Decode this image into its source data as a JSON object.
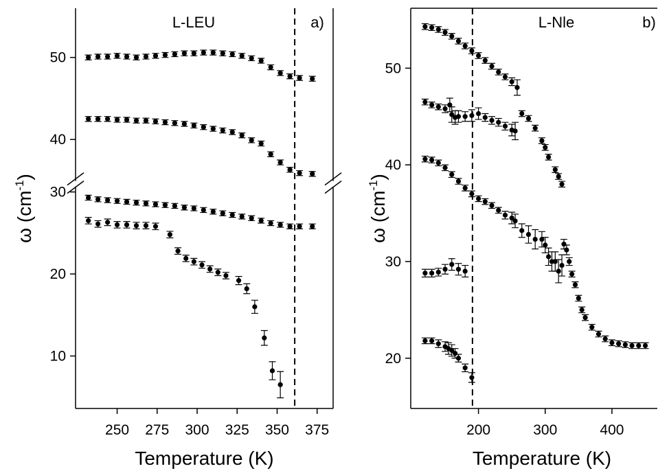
{
  "chart_data": [
    {
      "type": "scatter",
      "annotation": "L-LEU",
      "panel_label": "a)",
      "xlabel": "Temperature (K)",
      "ylabel": [
        "ω (cm",
        "-1",
        ")"
      ],
      "xlim": [
        224,
        385
      ],
      "ylim": [
        3.6,
        56
      ],
      "y_break": [
        31,
        34.6
      ],
      "vline": 361,
      "xticks": [
        250,
        275,
        300,
        325,
        350,
        375
      ],
      "yticks": [
        10,
        20,
        30,
        40,
        50
      ],
      "series": [
        {
          "color": "#000000",
          "x": [
            232,
            238,
            244,
            250,
            256,
            262,
            268,
            274,
            280,
            286,
            292,
            298,
            304,
            310,
            316,
            322,
            328,
            334,
            340,
            346,
            352,
            358,
            364,
            372
          ],
          "values": [
            50.0,
            50.1,
            50.1,
            50.2,
            50.1,
            50.0,
            50.1,
            50.2,
            50.3,
            50.4,
            50.5,
            50.5,
            50.6,
            50.6,
            50.5,
            50.4,
            50.2,
            49.9,
            49.6,
            48.8,
            48.1,
            47.7,
            47.5,
            47.4
          ],
          "errors": [
            0.3,
            0.3,
            0.3,
            0.3,
            0.3,
            0.3,
            0.3,
            0.3,
            0.3,
            0.3,
            0.3,
            0.3,
            0.3,
            0.3,
            0.3,
            0.3,
            0.3,
            0.3,
            0.3,
            0.3,
            0.3,
            0.3,
            0.3,
            0.3
          ]
        },
        {
          "color": "#000000",
          "x": [
            232,
            238,
            244,
            250,
            256,
            262,
            268,
            274,
            280,
            286,
            292,
            298,
            304,
            310,
            316,
            322,
            328,
            334,
            340,
            346,
            352,
            358,
            364,
            372
          ],
          "values": [
            42.5,
            42.5,
            42.5,
            42.4,
            42.4,
            42.3,
            42.3,
            42.2,
            42.1,
            42.0,
            41.9,
            41.7,
            41.5,
            41.3,
            41.1,
            40.9,
            40.5,
            39.9,
            39.5,
            38.2,
            37.2,
            36.3,
            35.9,
            35.8
          ],
          "errors": [
            0.3,
            0.3,
            0.3,
            0.3,
            0.3,
            0.3,
            0.3,
            0.3,
            0.3,
            0.3,
            0.3,
            0.3,
            0.3,
            0.3,
            0.3,
            0.3,
            0.3,
            0.3,
            0.3,
            0.3,
            0.3,
            0.3,
            0.3,
            0.3
          ]
        },
        {
          "color": "#000000",
          "x": [
            232,
            238,
            244,
            250,
            256,
            262,
            268,
            274,
            280,
            286,
            292,
            298,
            304,
            310,
            316,
            322,
            328,
            334,
            340,
            346,
            352,
            358,
            364,
            372
          ],
          "values": [
            29.3,
            29.1,
            29.0,
            28.9,
            28.8,
            28.7,
            28.6,
            28.5,
            28.4,
            28.3,
            28.1,
            28.0,
            27.8,
            27.6,
            27.4,
            27.2,
            27.0,
            26.8,
            26.5,
            26.2,
            26.0,
            25.8,
            25.8,
            25.8
          ],
          "errors": [
            0.3,
            0.3,
            0.3,
            0.3,
            0.3,
            0.3,
            0.3,
            0.3,
            0.3,
            0.3,
            0.3,
            0.3,
            0.3,
            0.3,
            0.3,
            0.3,
            0.3,
            0.3,
            0.3,
            0.3,
            0.3,
            0.3,
            0.3,
            0.3
          ]
        },
        {
          "color": "#000000",
          "x": [
            232,
            238,
            244,
            250,
            256,
            262,
            268,
            274,
            283,
            288,
            293,
            298,
            303,
            308,
            313,
            318,
            326,
            331,
            336,
            342,
            347,
            352
          ],
          "values": [
            26.5,
            26.1,
            26.3,
            26.0,
            26.0,
            25.9,
            25.9,
            25.8,
            24.8,
            22.8,
            21.9,
            21.5,
            21.1,
            20.6,
            20.2,
            19.8,
            19.2,
            18.2,
            16.0,
            12.2,
            8.2,
            6.5
          ],
          "errors": [
            0.4,
            0.4,
            0.4,
            0.4,
            0.4,
            0.4,
            0.4,
            0.4,
            0.4,
            0.4,
            0.4,
            0.4,
            0.4,
            0.4,
            0.4,
            0.4,
            0.5,
            0.6,
            0.8,
            0.9,
            1.1,
            1.6
          ]
        }
      ]
    },
    {
      "type": "scatter",
      "annotation": "L-Nle",
      "panel_label": "b)",
      "xlabel": "Temperature (K)",
      "ylabel": [
        "ω (cm",
        "-1",
        ")"
      ],
      "xlim": [
        98.5,
        468
      ],
      "ylim": [
        14.8,
        56.2
      ],
      "vline": 191,
      "xticks": [
        200,
        300,
        400
      ],
      "yticks": [
        20,
        30,
        40,
        50
      ],
      "series": [
        {
          "color": "#000000",
          "x": [
            120,
            130,
            140,
            150,
            160,
            170,
            180,
            190,
            200,
            210,
            220,
            230,
            240,
            250,
            258
          ],
          "values": [
            54.3,
            54.2,
            54.0,
            53.7,
            53.3,
            52.8,
            52.3,
            51.8,
            51.3,
            50.8,
            50.2,
            49.6,
            49.1,
            48.6,
            48.0
          ],
          "errors": [
            0.3,
            0.3,
            0.3,
            0.3,
            0.3,
            0.3,
            0.3,
            0.3,
            0.3,
            0.3,
            0.3,
            0.3,
            0.3,
            0.4,
            0.8
          ]
        },
        {
          "color": "#000000",
          "x": [
            120,
            130,
            140,
            150,
            157,
            160,
            165,
            170,
            180,
            190,
            200,
            210,
            220,
            230,
            240,
            250,
            255
          ],
          "values": [
            46.5,
            46.2,
            46.0,
            45.8,
            46.2,
            45.2,
            44.9,
            45.0,
            45.0,
            45.1,
            45.3,
            44.9,
            44.6,
            44.4,
            44.0,
            43.6,
            43.5
          ],
          "errors": [
            0.3,
            0.3,
            0.3,
            0.4,
            0.7,
            0.8,
            0.7,
            0.6,
            0.5,
            0.6,
            0.6,
            0.4,
            0.4,
            0.4,
            0.4,
            0.6,
            0.9
          ]
        },
        {
          "color": "#000000",
          "x": [
            265,
            275,
            285,
            295,
            300,
            305,
            315,
            320,
            325
          ],
          "values": [
            45.3,
            44.8,
            43.8,
            42.5,
            41.8,
            40.8,
            39.5,
            38.8,
            38.0
          ],
          "errors": [
            0.3,
            0.3,
            0.3,
            0.3,
            0.3,
            0.3,
            0.3,
            0.3,
            0.3
          ]
        },
        {
          "color": "#000000",
          "x": [
            120,
            130,
            140,
            150,
            160,
            170,
            180,
            190,
            200,
            210,
            220,
            230,
            240,
            250,
            255,
            265,
            275,
            285,
            295,
            300,
            305,
            310,
            315,
            320,
            325,
            328,
            332,
            336,
            340,
            345,
            350,
            355,
            360,
            370,
            380,
            390,
            400,
            410,
            420,
            430,
            440,
            450
          ],
          "values": [
            40.6,
            40.5,
            40.2,
            39.7,
            39.0,
            38.3,
            37.6,
            37.0,
            36.5,
            36.2,
            35.8,
            35.3,
            34.8,
            34.5,
            34.2,
            33.2,
            32.8,
            32.3,
            32.3,
            31.7,
            30.5,
            30.0,
            30.0,
            29.0,
            29.6,
            31.8,
            31.2,
            30.0,
            28.7,
            27.6,
            26.2,
            25.0,
            24.2,
            23.2,
            22.5,
            22.0,
            21.6,
            21.5,
            21.4,
            21.3,
            21.3,
            21.3
          ],
          "errors": [
            0.3,
            0.3,
            0.3,
            0.3,
            0.3,
            0.3,
            0.3,
            0.3,
            0.3,
            0.3,
            0.3,
            0.3,
            0.4,
            0.6,
            0.7,
            0.7,
            0.9,
            1.0,
            0.8,
            0.8,
            0.9,
            1.0,
            1.0,
            1.2,
            1.1,
            0.5,
            0.5,
            0.4,
            0.3,
            0.3,
            0.3,
            0.3,
            0.3,
            0.3,
            0.3,
            0.3,
            0.3,
            0.3,
            0.3,
            0.3,
            0.3,
            0.3
          ]
        },
        {
          "color": "#000000",
          "x": [
            120,
            130,
            140,
            150,
            160,
            170,
            180
          ],
          "values": [
            28.8,
            28.8,
            28.9,
            29.2,
            29.7,
            29.2,
            29.0
          ],
          "errors": [
            0.4,
            0.4,
            0.4,
            0.5,
            0.6,
            0.6,
            0.6
          ]
        },
        {
          "color": "#000000",
          "x": [
            120,
            130,
            140,
            150,
            155,
            160,
            165,
            170,
            180,
            190
          ],
          "values": [
            21.8,
            21.8,
            21.5,
            21.2,
            21.0,
            20.8,
            20.5,
            20.0,
            19.0,
            18.0
          ],
          "errors": [
            0.3,
            0.3,
            0.4,
            0.5,
            0.6,
            0.6,
            0.5,
            0.4,
            0.4,
            0.5
          ]
        }
      ]
    }
  ]
}
